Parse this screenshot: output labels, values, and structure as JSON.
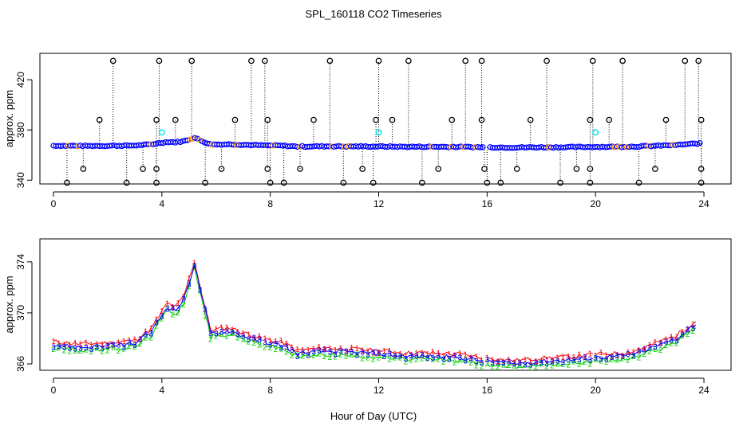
{
  "figure": {
    "title": "SPL_160118  CO2 Timeseries",
    "xlabel": "Hour of Day (UTC)"
  },
  "colors": {
    "axis": "#000000",
    "marker_black": "#000000",
    "marker_blue": "#0000ff",
    "marker_cyan": "#00e5ee",
    "marker_orange": "#ff8c00",
    "series1": "#ff0000",
    "series2": "#00cc00",
    "series3": "#0000ff"
  },
  "chart_data": [
    {
      "type": "scatter",
      "title": "SPL_160118  CO2 Timeseries",
      "xlabel": "",
      "ylabel": "approx. ppm",
      "xlim": [
        -0.5,
        25
      ],
      "ylim": [
        337,
        441
      ],
      "xticks": [
        0,
        4,
        8,
        12,
        16,
        20,
        24
      ],
      "yticks": [
        340,
        380,
        420
      ],
      "baseline_knots": [
        [
          0,
          367.5
        ],
        [
          1,
          367.3
        ],
        [
          2,
          367.4
        ],
        [
          3,
          367.6
        ],
        [
          3.6,
          368.5
        ],
        [
          3.9,
          369.5
        ],
        [
          4.2,
          370.5
        ],
        [
          4.5,
          370.2
        ],
        [
          4.8,
          371.0
        ],
        [
          5.2,
          373.8
        ],
        [
          5.5,
          371.0
        ],
        [
          5.8,
          368.4
        ],
        [
          6.5,
          368.6
        ],
        [
          7.0,
          368.2
        ],
        [
          7.6,
          367.8
        ],
        [
          8.5,
          367.4
        ],
        [
          9.0,
          366.8
        ],
        [
          10,
          367.0
        ],
        [
          11,
          366.9
        ],
        [
          12,
          366.8
        ],
        [
          13,
          366.6
        ],
        [
          14,
          366.6
        ],
        [
          15,
          366.5
        ],
        [
          15.9,
          366.2
        ],
        [
          16.1,
          366.2
        ],
        [
          17,
          366.0
        ],
        [
          18,
          366.2
        ],
        [
          19,
          366.3
        ],
        [
          20,
          366.5
        ],
        [
          21,
          366.6
        ],
        [
          21.5,
          366.8
        ],
        [
          22,
          367.2
        ],
        [
          23,
          368.0
        ],
        [
          23.6,
          369.0
        ],
        [
          23.8,
          369.2
        ]
      ],
      "outliers_high": [
        2.2,
        3.9,
        5.1,
        7.3,
        7.8,
        10.2,
        12.0,
        13.1,
        15.2,
        15.8,
        18.2,
        19.9,
        21.0,
        23.3,
        23.8
      ],
      "outliers_mid": [
        1.7,
        3.8,
        4.5,
        6.7,
        7.9,
        9.6,
        11.9,
        12.5,
        14.7,
        15.8,
        17.6,
        19.8,
        20.5,
        22.6,
        23.9
      ],
      "outliers_low_350": [
        1.1,
        3.3,
        3.8,
        6.2,
        7.9,
        9.1,
        11.4,
        14.2,
        15.9,
        17.1,
        19.3,
        19.8,
        22.2,
        23.9
      ],
      "outliers_low_338": [
        0.5,
        2.7,
        3.8,
        5.6,
        8.0,
        8.5,
        10.7,
        11.8,
        13.6,
        16.0,
        16.5,
        18.7,
        19.8,
        21.6,
        23.9
      ],
      "cyan_points": [
        [
          4.0,
          378
        ],
        [
          12.0,
          378
        ],
        [
          20.0,
          378
        ]
      ]
    },
    {
      "type": "line",
      "title": "",
      "xlabel": "Hour of Day (UTC)",
      "ylabel": "approx. ppm",
      "xlim": [
        -0.5,
        25
      ],
      "ylim": [
        365.5,
        375.8
      ],
      "xticks": [
        0,
        4,
        8,
        12,
        16,
        20,
        24
      ],
      "yticks": [
        366,
        370,
        374
      ],
      "series": [
        {
          "name": "1",
          "offset": 0.25
        },
        {
          "name": "2",
          "offset": -0.25
        },
        {
          "name": "3",
          "offset": 0.0
        }
      ]
    }
  ]
}
